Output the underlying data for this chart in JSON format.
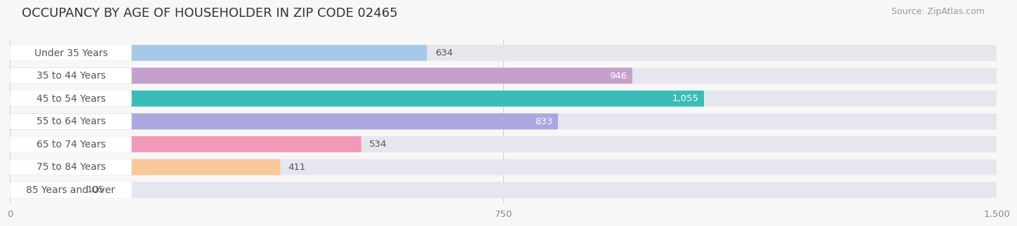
{
  "title": "OCCUPANCY BY AGE OF HOUSEHOLDER IN ZIP CODE 02465",
  "source": "Source: ZipAtlas.com",
  "categories": [
    "Under 35 Years",
    "35 to 44 Years",
    "45 to 54 Years",
    "55 to 64 Years",
    "65 to 74 Years",
    "75 to 84 Years",
    "85 Years and Over"
  ],
  "values": [
    634,
    946,
    1055,
    833,
    534,
    411,
    105
  ],
  "bar_colors": [
    "#a8c8e8",
    "#c4a0cc",
    "#3abcb8",
    "#aaa8e0",
    "#f09ab8",
    "#f8c898",
    "#f0aea8"
  ],
  "bar_background": "#e6e6ee",
  "label_bg": "#ffffff",
  "xlim_max": 1500,
  "xticks": [
    0,
    750,
    1500
  ],
  "title_fontsize": 13,
  "label_fontsize": 10,
  "value_fontsize": 9.5,
  "source_fontsize": 9,
  "background_color": "#f7f7f7",
  "value_inside_threshold": 700,
  "value_inside_color": "#ffffff",
  "value_outside_color": "#555555",
  "label_color": "#555555",
  "tick_color": "#888888"
}
